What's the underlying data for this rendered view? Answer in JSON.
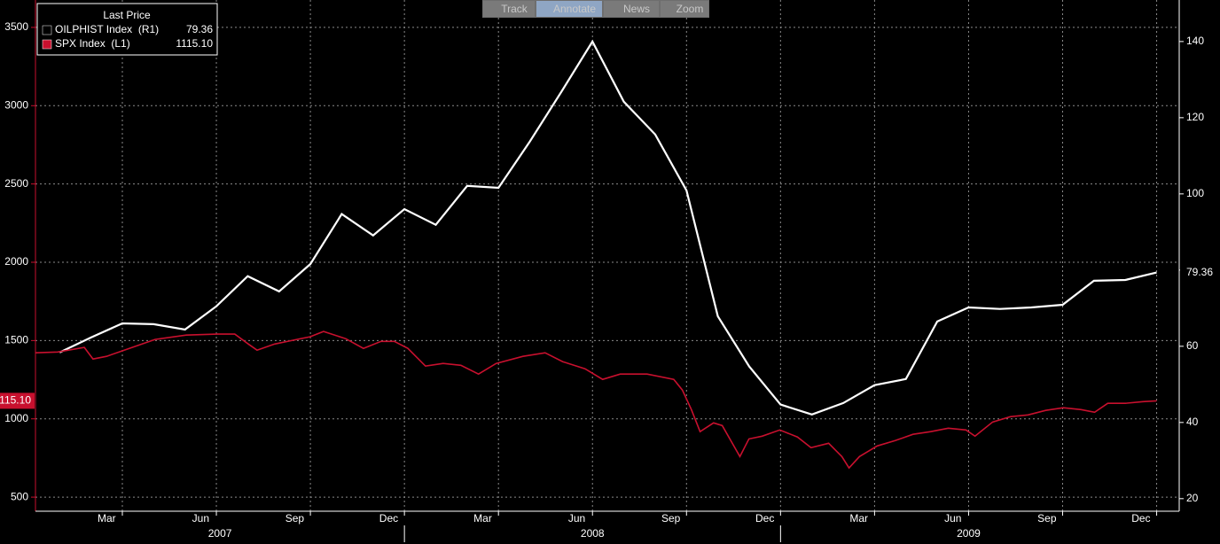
{
  "chart_data": {
    "type": "line",
    "legend_title": "Last Price",
    "xlim": [
      2007.019,
      2010.06
    ],
    "xticks": [
      {
        "value": 2007.25,
        "label": "Mar"
      },
      {
        "value": 2007.5,
        "label": "Jun"
      },
      {
        "value": 2007.75,
        "label": "Sep"
      },
      {
        "value": 2008.0,
        "label": "Dec"
      },
      {
        "value": 2008.25,
        "label": "Mar"
      },
      {
        "value": 2008.5,
        "label": "Jun"
      },
      {
        "value": 2008.75,
        "label": "Sep"
      },
      {
        "value": 2009.0,
        "label": "Dec"
      },
      {
        "value": 2009.25,
        "label": "Mar"
      },
      {
        "value": 2009.5,
        "label": "Jun"
      },
      {
        "value": 2009.75,
        "label": "Sep"
      },
      {
        "value": 2010.0,
        "label": "Dec"
      }
    ],
    "years": [
      2007,
      2008,
      2009
    ],
    "ylim": [
      410,
      3675
    ],
    "yticks": [
      500,
      1000,
      1500,
      2000,
      2500,
      3000,
      3500
    ],
    "y2lim": [
      16.7,
      150.9
    ],
    "y2ticks": [
      20,
      40,
      60,
      80,
      100,
      120,
      140
    ],
    "grid": true,
    "series": [
      {
        "name": "OILPHIST Index  (R1)",
        "color": "#000000",
        "axis": "y2",
        "x": [
          2007.0833,
          2007.1667,
          2007.25,
          2007.3333,
          2007.4167,
          2007.5,
          2007.5833,
          2007.6667,
          2007.75,
          2007.8333,
          2007.9167,
          2008.0,
          2008.0833,
          2008.1667,
          2008.25,
          2008.3333,
          2008.4167,
          2008.5,
          2008.5833,
          2008.6667,
          2008.75,
          2008.8333,
          2008.9167,
          2009.0,
          2009.0833,
          2009.1667,
          2009.25,
          2009.3333,
          2009.4167,
          2009.5,
          2009.5833,
          2009.6667,
          2009.75,
          2009.8333,
          2009.9167,
          2010.0
        ],
        "values": [
          58.4,
          62.3,
          66.0,
          65.8,
          64.4,
          70.5,
          78.4,
          74.4,
          81.6,
          94.7,
          89.1,
          96.0,
          91.9,
          102.1,
          101.6,
          113.7,
          126.7,
          140.0,
          124.2,
          115.6,
          100.9,
          67.9,
          54.7,
          44.7,
          42.1,
          45.1,
          49.8,
          51.4,
          66.5,
          70.2,
          69.8,
          70.2,
          70.9,
          77.2,
          77.4,
          79.36
        ]
      },
      {
        "name": "SPX Index  (L1)",
        "color": "#c8102e",
        "axis": "y",
        "last_value_label": "1115.10",
        "x": [
          2007.019,
          2007.078,
          2007.149,
          2007.172,
          2007.208,
          2007.255,
          2007.337,
          2007.42,
          2007.502,
          2007.549,
          2007.585,
          2007.608,
          2007.655,
          2007.714,
          2007.749,
          2007.785,
          2007.844,
          2007.891,
          2007.938,
          2007.973,
          2008.009,
          2008.056,
          2008.103,
          2008.15,
          2008.197,
          2008.244,
          2008.315,
          2008.374,
          2008.421,
          2008.48,
          2008.527,
          2008.574,
          2008.645,
          2008.716,
          2008.739,
          2008.763,
          2008.786,
          2008.822,
          2008.845,
          2008.892,
          2008.916,
          2008.951,
          2008.998,
          2009.045,
          2009.081,
          2009.128,
          2009.163,
          2009.182,
          2009.21,
          2009.257,
          2009.305,
          2009.352,
          2009.399,
          2009.446,
          2009.493,
          2009.517,
          2009.564,
          2009.611,
          2009.658,
          2009.705,
          2009.752,
          2009.799,
          2009.835,
          2009.87,
          2009.917,
          2009.964,
          2010.0
        ],
        "values": [
          1422,
          1427,
          1456,
          1382,
          1399,
          1439,
          1507,
          1535,
          1541,
          1541,
          1478,
          1439,
          1478,
          1507,
          1524,
          1558,
          1512,
          1450,
          1495,
          1495,
          1450,
          1337,
          1354,
          1342,
          1286,
          1354,
          1399,
          1422,
          1365,
          1320,
          1252,
          1286,
          1286,
          1252,
          1184,
          1059,
          918,
          974,
          957,
          759,
          872,
          889,
          929,
          884,
          816,
          844,
          759,
          686,
          759,
          827,
          861,
          901,
          918,
          940,
          929,
          889,
          980,
          1014,
          1025,
          1054,
          1071,
          1059,
          1042,
          1099,
          1099,
          1110,
          1115.1
        ]
      }
    ]
  },
  "toolbar": [
    "Track",
    "Annotate",
    "News",
    "Zoom"
  ]
}
